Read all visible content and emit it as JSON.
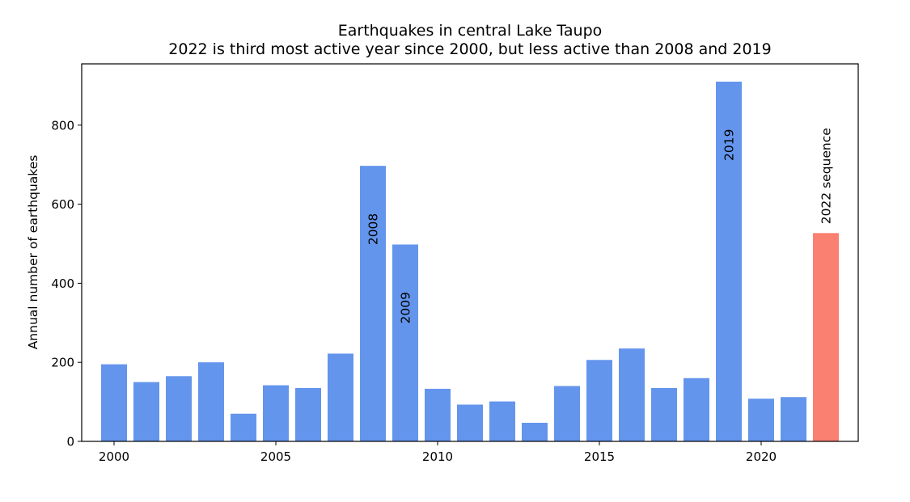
{
  "chart_data": {
    "type": "bar",
    "title": "Earthquakes in central Lake Taupo",
    "subtitle": "2022 is third most active year since 2000, but less active than 2008 and 2019",
    "ylabel": "Annual number of earthquakes",
    "xlabel": "",
    "xlim": [
      1999,
      2023
    ],
    "ylim": [
      0,
      955
    ],
    "x_ticks": [
      2000,
      2005,
      2010,
      2015,
      2020
    ],
    "y_ticks": [
      0,
      200,
      400,
      600,
      800
    ],
    "grid": false,
    "colors": {
      "default": "#6495ED",
      "highlight": "#FA8072",
      "axis": "#000000"
    },
    "series": [
      {
        "years": [
          2000,
          2001,
          2002,
          2003,
          2004,
          2005,
          2006,
          2007,
          2008,
          2009,
          2010,
          2011,
          2012,
          2013,
          2014,
          2015,
          2016,
          2017,
          2018,
          2019,
          2020,
          2021
        ],
        "values": [
          195,
          150,
          165,
          200,
          70,
          142,
          135,
          222,
          697,
          498,
          133,
          93,
          101,
          47,
          140,
          206,
          235,
          135,
          160,
          910,
          108,
          112
        ],
        "color": "#6495ED"
      },
      {
        "years": [
          2022
        ],
        "values": [
          527
        ],
        "color": "#FA8072"
      }
    ],
    "annotations": [
      {
        "year": 2008,
        "text": "2008",
        "position": "inside-top"
      },
      {
        "year": 2009,
        "text": "2009",
        "position": "inside-top"
      },
      {
        "year": 2019,
        "text": "2019",
        "position": "inside-top"
      },
      {
        "year": 2022,
        "text": "2022 sequence",
        "position": "above"
      }
    ]
  }
}
